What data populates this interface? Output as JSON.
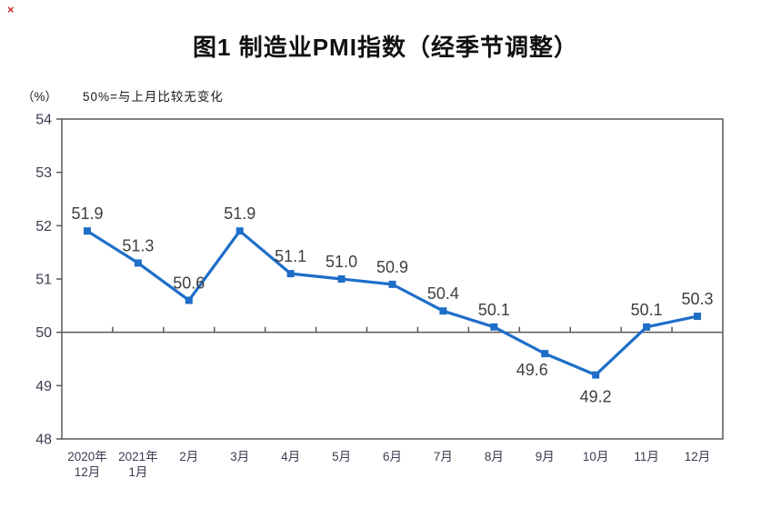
{
  "artifact": {
    "broken_image_mark": "×"
  },
  "header": {
    "title": "图1 制造业PMI指数（经季节调整）"
  },
  "labels": {
    "unit": "（%）",
    "note": "50%=与上月比较无变化"
  },
  "chart_data": {
    "type": "line",
    "title": "图1 制造业PMI指数（经季节调整）",
    "unit": "%",
    "categories": [
      [
        "2020年",
        "12月"
      ],
      [
        "2021年",
        "1月"
      ],
      [
        "2月"
      ],
      [
        "3月"
      ],
      [
        "4月"
      ],
      [
        "5月"
      ],
      [
        "6月"
      ],
      [
        "7月"
      ],
      [
        "8月"
      ],
      [
        "9月"
      ],
      [
        "10月"
      ],
      [
        "11月"
      ],
      [
        "12月"
      ]
    ],
    "series": [
      {
        "name": "制造业PMI",
        "values": [
          51.9,
          51.3,
          50.6,
          51.9,
          51.1,
          51.0,
          50.9,
          50.4,
          50.1,
          49.6,
          49.2,
          50.1,
          50.3
        ]
      }
    ],
    "data_label_positions": [
      "above",
      "above",
      "above",
      "above",
      "above",
      "above",
      "above",
      "above",
      "above",
      "below",
      "below",
      "above",
      "above"
    ],
    "ylim": [
      48,
      54
    ],
    "ytick_step": 1,
    "reference_line": 50,
    "grid": false,
    "legend": "none",
    "xlabel": "",
    "ylabel": "（%）"
  },
  "colors": {
    "line": "#1e6ec8",
    "frame": "#595959",
    "axis_text": "#3c3c50",
    "data_label": "#3f3f3f",
    "title": "#111111",
    "broken_mark": "#cc2a2a"
  }
}
